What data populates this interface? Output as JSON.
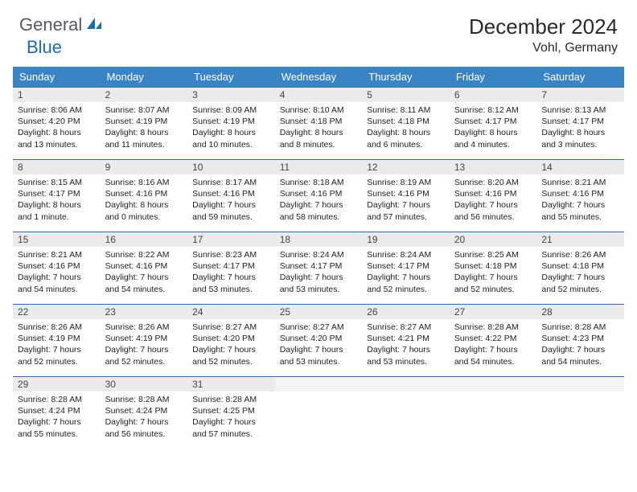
{
  "brand": {
    "part1": "General",
    "part2": "Blue"
  },
  "title": "December 2024",
  "location": "Vohl, Germany",
  "colors": {
    "header_bg": "#3b84c4",
    "header_text": "#ffffff",
    "daynum_bg": "#ebebeb",
    "row_divider": "#3b6a9a",
    "brand_gray": "#555963",
    "brand_blue": "#1a6bb5",
    "background": "#ffffff",
    "body_text": "#222222"
  },
  "typography": {
    "font_family": "Arial",
    "title_fontsize": 26,
    "location_fontsize": 16,
    "weekday_fontsize": 13,
    "daynum_fontsize": 12,
    "cell_fontsize": 10.5
  },
  "weekdays": [
    "Sunday",
    "Monday",
    "Tuesday",
    "Wednesday",
    "Thursday",
    "Friday",
    "Saturday"
  ],
  "weeks": [
    [
      {
        "n": "1",
        "sunrise": "8:06 AM",
        "sunset": "4:20 PM",
        "daylight": "8 hours and 13 minutes."
      },
      {
        "n": "2",
        "sunrise": "8:07 AM",
        "sunset": "4:19 PM",
        "daylight": "8 hours and 11 minutes."
      },
      {
        "n": "3",
        "sunrise": "8:09 AM",
        "sunset": "4:19 PM",
        "daylight": "8 hours and 10 minutes."
      },
      {
        "n": "4",
        "sunrise": "8:10 AM",
        "sunset": "4:18 PM",
        "daylight": "8 hours and 8 minutes."
      },
      {
        "n": "5",
        "sunrise": "8:11 AM",
        "sunset": "4:18 PM",
        "daylight": "8 hours and 6 minutes."
      },
      {
        "n": "6",
        "sunrise": "8:12 AM",
        "sunset": "4:17 PM",
        "daylight": "8 hours and 4 minutes."
      },
      {
        "n": "7",
        "sunrise": "8:13 AM",
        "sunset": "4:17 PM",
        "daylight": "8 hours and 3 minutes."
      }
    ],
    [
      {
        "n": "8",
        "sunrise": "8:15 AM",
        "sunset": "4:17 PM",
        "daylight": "8 hours and 1 minute."
      },
      {
        "n": "9",
        "sunrise": "8:16 AM",
        "sunset": "4:16 PM",
        "daylight": "8 hours and 0 minutes."
      },
      {
        "n": "10",
        "sunrise": "8:17 AM",
        "sunset": "4:16 PM",
        "daylight": "7 hours and 59 minutes."
      },
      {
        "n": "11",
        "sunrise": "8:18 AM",
        "sunset": "4:16 PM",
        "daylight": "7 hours and 58 minutes."
      },
      {
        "n": "12",
        "sunrise": "8:19 AM",
        "sunset": "4:16 PM",
        "daylight": "7 hours and 57 minutes."
      },
      {
        "n": "13",
        "sunrise": "8:20 AM",
        "sunset": "4:16 PM",
        "daylight": "7 hours and 56 minutes."
      },
      {
        "n": "14",
        "sunrise": "8:21 AM",
        "sunset": "4:16 PM",
        "daylight": "7 hours and 55 minutes."
      }
    ],
    [
      {
        "n": "15",
        "sunrise": "8:21 AM",
        "sunset": "4:16 PM",
        "daylight": "7 hours and 54 minutes."
      },
      {
        "n": "16",
        "sunrise": "8:22 AM",
        "sunset": "4:16 PM",
        "daylight": "7 hours and 54 minutes."
      },
      {
        "n": "17",
        "sunrise": "8:23 AM",
        "sunset": "4:17 PM",
        "daylight": "7 hours and 53 minutes."
      },
      {
        "n": "18",
        "sunrise": "8:24 AM",
        "sunset": "4:17 PM",
        "daylight": "7 hours and 53 minutes."
      },
      {
        "n": "19",
        "sunrise": "8:24 AM",
        "sunset": "4:17 PM",
        "daylight": "7 hours and 52 minutes."
      },
      {
        "n": "20",
        "sunrise": "8:25 AM",
        "sunset": "4:18 PM",
        "daylight": "7 hours and 52 minutes."
      },
      {
        "n": "21",
        "sunrise": "8:26 AM",
        "sunset": "4:18 PM",
        "daylight": "7 hours and 52 minutes."
      }
    ],
    [
      {
        "n": "22",
        "sunrise": "8:26 AM",
        "sunset": "4:19 PM",
        "daylight": "7 hours and 52 minutes."
      },
      {
        "n": "23",
        "sunrise": "8:26 AM",
        "sunset": "4:19 PM",
        "daylight": "7 hours and 52 minutes."
      },
      {
        "n": "24",
        "sunrise": "8:27 AM",
        "sunset": "4:20 PM",
        "daylight": "7 hours and 52 minutes."
      },
      {
        "n": "25",
        "sunrise": "8:27 AM",
        "sunset": "4:20 PM",
        "daylight": "7 hours and 53 minutes."
      },
      {
        "n": "26",
        "sunrise": "8:27 AM",
        "sunset": "4:21 PM",
        "daylight": "7 hours and 53 minutes."
      },
      {
        "n": "27",
        "sunrise": "8:28 AM",
        "sunset": "4:22 PM",
        "daylight": "7 hours and 54 minutes."
      },
      {
        "n": "28",
        "sunrise": "8:28 AM",
        "sunset": "4:23 PM",
        "daylight": "7 hours and 54 minutes."
      }
    ],
    [
      {
        "n": "29",
        "sunrise": "8:28 AM",
        "sunset": "4:24 PM",
        "daylight": "7 hours and 55 minutes."
      },
      {
        "n": "30",
        "sunrise": "8:28 AM",
        "sunset": "4:24 PM",
        "daylight": "7 hours and 56 minutes."
      },
      {
        "n": "31",
        "sunrise": "8:28 AM",
        "sunset": "4:25 PM",
        "daylight": "7 hours and 57 minutes."
      },
      null,
      null,
      null,
      null
    ]
  ],
  "labels": {
    "sunrise": "Sunrise:",
    "sunset": "Sunset:",
    "daylight": "Daylight:"
  }
}
